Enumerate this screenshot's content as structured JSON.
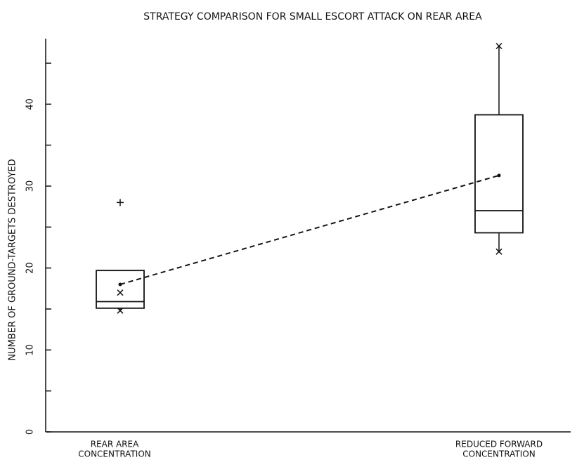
{
  "chart_data": {
    "type": "box",
    "title": "STRATEGY COMPARISON FOR SMALL ESCORT ATTACK ON REAR AREA",
    "y_label": "NUMBER OF GROUND-TARGETS DESTROYED",
    "categories": [
      [
        "REAR AREA",
        "CONCENTRATION"
      ],
      [
        "REDUCED FORWARD",
        "CONCENTRATION"
      ]
    ],
    "q1": [
      15.1,
      24.3
    ],
    "median": [
      15.9,
      27.0
    ],
    "q3": [
      19.7,
      38.7
    ],
    "whisker_low": [
      14.8,
      22.0
    ],
    "whisker_high": [
      17.0,
      47.1
    ],
    "mean": [
      18.0,
      31.3
    ],
    "outliers": [
      [
        28.0
      ],
      []
    ],
    "ylim": [
      0,
      48
    ],
    "yticks": [
      0,
      10,
      20,
      30,
      40
    ],
    "yminor_ticks": [
      5,
      15,
      25,
      35,
      45
    ],
    "color": "#111111"
  }
}
